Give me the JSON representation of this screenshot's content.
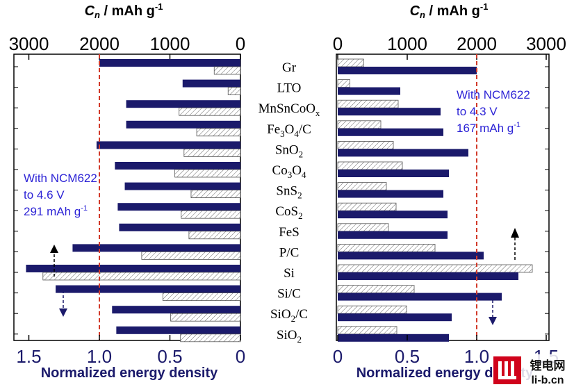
{
  "chart_data": {
    "type": "bar",
    "orientation": "horizontal",
    "categories": [
      {
        "name": "Gr",
        "label": "Gr"
      },
      {
        "name": "LTO",
        "label": "LTO"
      },
      {
        "name": "MnSnCoOx",
        "label": "MnSnCoO",
        "sub": "x"
      },
      {
        "name": "Fe3O4/C",
        "label": "Fe",
        "sub": "3",
        "label2": "O",
        "sub2": "4",
        "label3": "/C"
      },
      {
        "name": "SnO2",
        "label": "SnO",
        "sub": "2"
      },
      {
        "name": "Co3O4",
        "label": "Co",
        "sub": "3",
        "label2": "O",
        "sub2": "4"
      },
      {
        "name": "SnS2",
        "label": "SnS",
        "sub": "2"
      },
      {
        "name": "CoS2",
        "label": "CoS",
        "sub": "2"
      },
      {
        "name": "FeS",
        "label": "FeS"
      },
      {
        "name": "P/C",
        "label": "P/C"
      },
      {
        "name": "Si",
        "label": "Si"
      },
      {
        "name": "Si/C",
        "label": "Si/C"
      },
      {
        "name": "SiO2/C",
        "label": "SiO",
        "sub": "2",
        "label2": "/C"
      },
      {
        "name": "SiO2",
        "label": "SiO",
        "sub": "2"
      }
    ],
    "left_panel": {
      "annotation": [
        "With NCM622",
        "to 4.6 V",
        "291 mAh g",
        "-1"
      ],
      "capacity_axis": {
        "title": "C",
        "title_sub": "n",
        "title_rest": " / mAh g",
        "title_sup": "-1",
        "ticks": [
          3000,
          2000,
          1000,
          0
        ],
        "range": [
          3000,
          0
        ]
      },
      "energy_axis": {
        "title": "Normalized energy density",
        "ticks": [
          "1.5",
          "1.0",
          "0.5",
          "0"
        ],
        "range": [
          1.65,
          0
        ]
      },
      "reference_line": 1.0,
      "series": [
        {
          "name": "Normalized energy density",
          "style": "solid",
          "color": "#1b1a6b",
          "values": [
            1.0,
            0.41,
            0.81,
            0.81,
            1.02,
            0.89,
            0.82,
            0.87,
            0.86,
            1.19,
            1.52,
            1.31,
            0.91,
            0.88
          ]
        },
        {
          "name": "Capacity C_n (mAh g-1)",
          "style": "hatched",
          "color": "#ffffff",
          "values": [
            372,
            175,
            870,
            620,
            800,
            930,
            700,
            840,
            730,
            1400,
            2800,
            1100,
            990,
            850
          ]
        }
      ]
    },
    "right_panel": {
      "annotation": [
        "With NCM622",
        "to 4.3 V",
        "167 mAh g",
        "-1"
      ],
      "capacity_axis": {
        "title": "C",
        "title_sub": "n",
        "title_rest": " / mAh g",
        "title_sup": "-1",
        "ticks": [
          0,
          1000,
          2000,
          3000
        ],
        "range": [
          0,
          3000
        ]
      },
      "energy_axis": {
        "title": "Normalized energy density",
        "ticks": [
          "0",
          "0.5",
          "1.0",
          "1.5"
        ],
        "range": [
          0,
          1.5
        ]
      },
      "reference_line": 1.0,
      "series": [
        {
          "name": "Capacity C_n (mAh g-1)",
          "style": "hatched",
          "color": "#ffffff",
          "values": [
            372,
            175,
            870,
            620,
            800,
            930,
            700,
            840,
            730,
            1400,
            2800,
            1100,
            990,
            850
          ]
        },
        {
          "name": "Normalized energy density",
          "style": "solid",
          "color": "#1b1a6b",
          "values": [
            1.0,
            0.45,
            0.74,
            0.76,
            0.94,
            0.8,
            0.76,
            0.79,
            0.79,
            1.05,
            1.3,
            1.18,
            0.82,
            0.8
          ]
        }
      ]
    }
  },
  "watermark": {
    "text_top": "锂电网",
    "text_bottom": "li-b.cn",
    "colors": {
      "red": "#d0021b",
      "black": "#111111"
    }
  },
  "colors": {
    "bar_fill": "#1b1a6b",
    "annotation": "#2d24d6",
    "reference_line": "#d23a2a",
    "axis_title": "#1b1a6b"
  }
}
